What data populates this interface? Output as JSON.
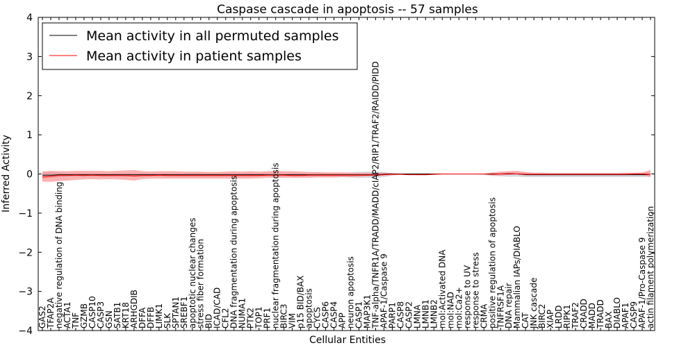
{
  "chart_data": {
    "type": "line",
    "title": "Caspase cascade in apoptosis -- 57 samples",
    "xlabel": "Cellular Entities",
    "ylabel": "Inferred Activity",
    "ylim": [
      -4,
      4
    ],
    "yticks": [
      -4,
      -3,
      -2,
      -1,
      0,
      1,
      2,
      3,
      4
    ],
    "ytick_labels": [
      "−4",
      "−3",
      "−2",
      "−1",
      "0",
      "1",
      "2",
      "3",
      "4"
    ],
    "legend": {
      "placement": "top-left",
      "entries": [
        {
          "label": "Mean activity in all permuted samples",
          "color": "#000000"
        },
        {
          "label": "Mean activity in patient samples",
          "color": "#ff0000"
        }
      ]
    },
    "colors": {
      "permuted_line": "#000000",
      "patient_line": "#ff0000",
      "patient_band": "#ff7f7f",
      "permuted_band": "#c8c8d2"
    },
    "categories": [
      "GAS2",
      "TFAP2A",
      "negative regulation of DNA binding",
      "ACTA1",
      "TNF",
      "GZMB",
      "CASP10",
      "CASP3",
      "GSN",
      "SATB1",
      "KRT18",
      "ARHGDIB",
      "DFFA",
      "DFFB",
      "LIMK1",
      "SLK",
      "SPTAN1",
      "SREBF1",
      "apoptotic nuclear changes",
      "stress fiber formation",
      "BID",
      "ICAD/CAD",
      "CFL2",
      "DNA fragmentation during apoptosis",
      "NUMA1",
      "PTK2",
      "TOP1",
      "PRF1",
      "nuclear fragmentation during apoptosis",
      "BIRC3",
      "VIM",
      "p15 BID/BAX",
      "apoptosis",
      "CYCS",
      "CASP6",
      "CASP4",
      "APP",
      "neuron apoptosis",
      "CASP1",
      "MAP3K1",
      "TNF-alpha/TNFR1A/TRADD/MADD/cIAP2/RIP1/TRAF2/RAIDD/PIDD",
      "APAF-1/Caspase 9",
      "PARP1",
      "CASP8",
      "CASP2",
      "LMNA",
      "LMNB1",
      "LMNB2",
      "mol:Activated DNA",
      "mol:NAD",
      "mol:Ca2+",
      "response to UV",
      "response to stress",
      "CRMA",
      "positive regulation of apoptosis",
      "TNFRSF1A",
      "DNA repair",
      "Mammalian IAPs/DIABLO",
      "CAT",
      "JNK cascade",
      "BIRC2",
      "XIAP",
      "LRDD",
      "RIPK1",
      "TRAF2",
      "CRADD",
      "MADD",
      "TRADD",
      "BAX",
      "DIABLO",
      "APAF1",
      "CASP9",
      "APAF-1/Pro-Caspase 9",
      "actin filament polymerization"
    ],
    "series": [
      {
        "name": "Mean activity in all permuted samples",
        "values": [
          -0.03,
          -0.03,
          -0.02,
          -0.02,
          -0.02,
          -0.02,
          -0.02,
          -0.02,
          -0.02,
          -0.02,
          -0.02,
          -0.02,
          -0.02,
          -0.02,
          -0.02,
          -0.02,
          -0.02,
          -0.02,
          -0.02,
          -0.02,
          -0.02,
          -0.02,
          -0.02,
          -0.02,
          -0.02,
          -0.02,
          -0.02,
          -0.02,
          -0.02,
          -0.02,
          -0.02,
          -0.02,
          -0.02,
          -0.02,
          -0.02,
          -0.02,
          -0.02,
          -0.02,
          -0.02,
          -0.02,
          -0.02,
          -0.01,
          0.0,
          0.0,
          0.0,
          0.0,
          0.0,
          0.0,
          0.0,
          0.0,
          0.0,
          0.0,
          0.0,
          0.0,
          0.0,
          0.0,
          0.0,
          0.0,
          -0.02,
          -0.02,
          -0.02,
          -0.02,
          -0.02,
          -0.02,
          -0.02,
          -0.02,
          -0.02,
          -0.02,
          -0.02,
          -0.02,
          -0.02,
          -0.02,
          -0.02,
          -0.01
        ]
      },
      {
        "name": "Mean activity in patient samples",
        "values": [
          -0.08,
          -0.06,
          -0.04,
          -0.04,
          -0.03,
          -0.04,
          -0.03,
          -0.04,
          -0.04,
          -0.04,
          -0.04,
          -0.05,
          -0.04,
          -0.04,
          -0.03,
          -0.04,
          -0.04,
          -0.04,
          -0.04,
          -0.04,
          -0.04,
          -0.04,
          -0.04,
          -0.04,
          -0.04,
          -0.04,
          -0.04,
          -0.03,
          -0.03,
          -0.03,
          -0.04,
          -0.04,
          -0.03,
          -0.03,
          -0.03,
          -0.03,
          -0.03,
          -0.03,
          -0.03,
          -0.03,
          -0.03,
          -0.02,
          -0.01,
          -0.01,
          -0.02,
          -0.02,
          -0.02,
          -0.01,
          0.0,
          0.0,
          0.0,
          0.0,
          0.0,
          0.0,
          -0.01,
          0.0,
          0.01,
          0.0,
          -0.01,
          -0.01,
          -0.01,
          -0.01,
          -0.01,
          -0.01,
          -0.01,
          -0.01,
          -0.01,
          -0.01,
          -0.01,
          -0.01,
          -0.01,
          0.0,
          0.0,
          -0.01
        ]
      }
    ],
    "bands": [
      {
        "name": "Permuted samples spread",
        "upper": [
          0.07,
          0.05,
          0.04,
          0.03,
          0.03,
          0.03,
          0.03,
          0.03,
          0.03,
          0.03,
          0.03,
          0.03,
          0.03,
          0.03,
          0.03,
          0.03,
          0.03,
          0.03,
          0.03,
          0.03,
          0.03,
          0.03,
          0.03,
          0.03,
          0.03,
          0.03,
          0.03,
          0.03,
          0.03,
          0.03,
          0.03,
          0.03,
          0.03,
          0.03,
          0.03,
          0.03,
          0.03,
          0.04,
          0.05,
          0.06,
          0.06,
          0.05,
          0.02,
          0.01,
          0.01,
          0.01,
          0.01,
          0.01,
          0.01,
          0.01,
          0.01,
          0.01,
          0.01,
          0.01,
          0.02,
          0.03,
          0.04,
          0.04,
          0.03,
          0.03,
          0.03,
          0.03,
          0.03,
          0.03,
          0.03,
          0.03,
          0.03,
          0.03,
          0.03,
          0.03,
          0.03,
          0.03,
          0.03,
          0.03
        ],
        "lower": [
          -0.12,
          -0.1,
          -0.08,
          -0.07,
          -0.07,
          -0.07,
          -0.07,
          -0.07,
          -0.07,
          -0.07,
          -0.07,
          -0.07,
          -0.07,
          -0.07,
          -0.07,
          -0.07,
          -0.07,
          -0.07,
          -0.07,
          -0.07,
          -0.07,
          -0.07,
          -0.07,
          -0.07,
          -0.07,
          -0.07,
          -0.07,
          -0.07,
          -0.07,
          -0.07,
          -0.07,
          -0.07,
          -0.07,
          -0.07,
          -0.07,
          -0.07,
          -0.08,
          -0.09,
          -0.1,
          -0.1,
          -0.1,
          -0.08,
          -0.04,
          -0.02,
          -0.02,
          -0.02,
          -0.02,
          -0.02,
          -0.02,
          -0.02,
          -0.02,
          -0.02,
          -0.02,
          -0.03,
          -0.05,
          -0.06,
          -0.07,
          -0.07,
          -0.08,
          -0.08,
          -0.08,
          -0.08,
          -0.08,
          -0.08,
          -0.08,
          -0.08,
          -0.08,
          -0.08,
          -0.08,
          -0.08,
          -0.08,
          -0.08,
          -0.08,
          -0.07
        ]
      },
      {
        "name": "Patient samples spread",
        "upper": [
          0.05,
          0.08,
          0.07,
          0.07,
          0.08,
          0.08,
          0.08,
          0.08,
          0.07,
          0.08,
          0.09,
          0.1,
          0.07,
          0.06,
          0.07,
          0.07,
          0.07,
          0.06,
          0.06,
          0.06,
          0.05,
          0.05,
          0.06,
          0.07,
          0.06,
          0.07,
          0.06,
          0.07,
          0.08,
          0.07,
          0.07,
          0.06,
          0.05,
          0.05,
          0.04,
          0.04,
          0.04,
          0.03,
          0.03,
          0.03,
          0.03,
          0.03,
          0.02,
          0.01,
          0.0,
          0.0,
          0.0,
          0.0,
          0.0,
          0.0,
          0.0,
          0.0,
          0.0,
          0.01,
          0.04,
          0.06,
          0.07,
          0.08,
          0.05,
          0.03,
          0.03,
          0.02,
          0.02,
          0.02,
          0.02,
          0.02,
          0.02,
          0.02,
          0.02,
          0.02,
          0.03,
          0.03,
          0.04,
          0.1
        ],
        "lower": [
          -0.2,
          -0.2,
          -0.18,
          -0.17,
          -0.15,
          -0.14,
          -0.13,
          -0.14,
          -0.13,
          -0.14,
          -0.15,
          -0.17,
          -0.13,
          -0.12,
          -0.12,
          -0.12,
          -0.12,
          -0.12,
          -0.12,
          -0.12,
          -0.12,
          -0.12,
          -0.12,
          -0.12,
          -0.12,
          -0.12,
          -0.11,
          -0.1,
          -0.1,
          -0.1,
          -0.1,
          -0.1,
          -0.1,
          -0.09,
          -0.09,
          -0.09,
          -0.08,
          -0.08,
          -0.07,
          -0.06,
          -0.05,
          -0.04,
          -0.03,
          -0.02,
          -0.02,
          -0.03,
          -0.03,
          -0.02,
          -0.01,
          0.0,
          0.0,
          0.0,
          0.0,
          -0.01,
          -0.03,
          -0.04,
          -0.02,
          -0.01,
          -0.03,
          -0.03,
          -0.03,
          -0.03,
          -0.03,
          -0.03,
          -0.03,
          -0.03,
          -0.03,
          -0.03,
          -0.03,
          -0.03,
          -0.03,
          -0.02,
          -0.03,
          -0.08
        ]
      }
    ]
  }
}
